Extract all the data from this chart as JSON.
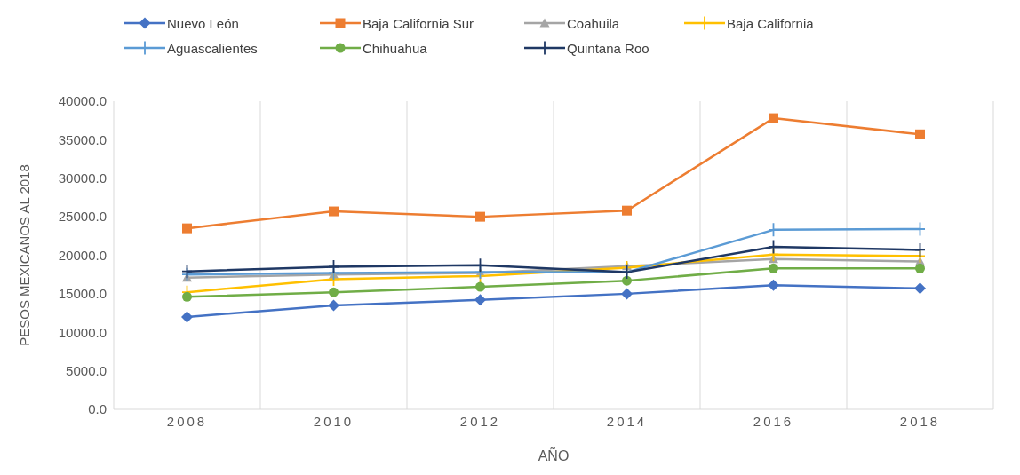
{
  "chart_data": {
    "type": "line",
    "xlabel": "AÑO",
    "ylabel": "PESOS MEXICANOS AL 2018",
    "categories": [
      "2008",
      "2010",
      "2012",
      "2014",
      "2016",
      "2018"
    ],
    "series": [
      {
        "name": "Nuevo León",
        "color": "#4472c4",
        "marker": "diamond",
        "values": [
          12000,
          13500,
          14200,
          15000,
          16100,
          15700
        ]
      },
      {
        "name": "Baja California Sur",
        "color": "#ed7d31",
        "marker": "square",
        "values": [
          23500,
          25700,
          25000,
          25800,
          37800,
          35700
        ]
      },
      {
        "name": "Coahuila",
        "color": "#a5a5a5",
        "marker": "triangle",
        "values": [
          17100,
          17500,
          17700,
          18600,
          19500,
          19200
        ]
      },
      {
        "name": "Baja California",
        "color": "#ffc000",
        "marker": "cross",
        "values": [
          15200,
          16900,
          17300,
          18400,
          20100,
          19900
        ]
      },
      {
        "name": "Aguascalientes",
        "color": "#5b9bd5",
        "marker": "cross",
        "values": [
          17500,
          17700,
          17800,
          17800,
          23300,
          23400
        ]
      },
      {
        "name": "Chihuahua",
        "color": "#70ad47",
        "marker": "circle",
        "values": [
          14600,
          15200,
          15900,
          16700,
          18300,
          18300
        ]
      },
      {
        "name": "Quintana Roo",
        "color": "#1f3864",
        "marker": "cross",
        "values": [
          17900,
          18500,
          18700,
          17800,
          21100,
          20700
        ]
      }
    ],
    "ylim": [
      0,
      40000
    ],
    "yticks": [
      {
        "value": 0,
        "label": "0.0"
      },
      {
        "value": 5000,
        "label": "5000.0"
      },
      {
        "value": 10000,
        "label": "10000.0"
      },
      {
        "value": 15000,
        "label": "15000.0"
      },
      {
        "value": 20000,
        "label": "20000.0"
      },
      {
        "value": 25000,
        "label": "25000.0"
      },
      {
        "value": 30000,
        "label": "30000.0"
      },
      {
        "value": 35000,
        "label": "35000.0"
      },
      {
        "value": 40000,
        "label": "40000.0"
      }
    ],
    "grid": "x",
    "legend": "top"
  }
}
